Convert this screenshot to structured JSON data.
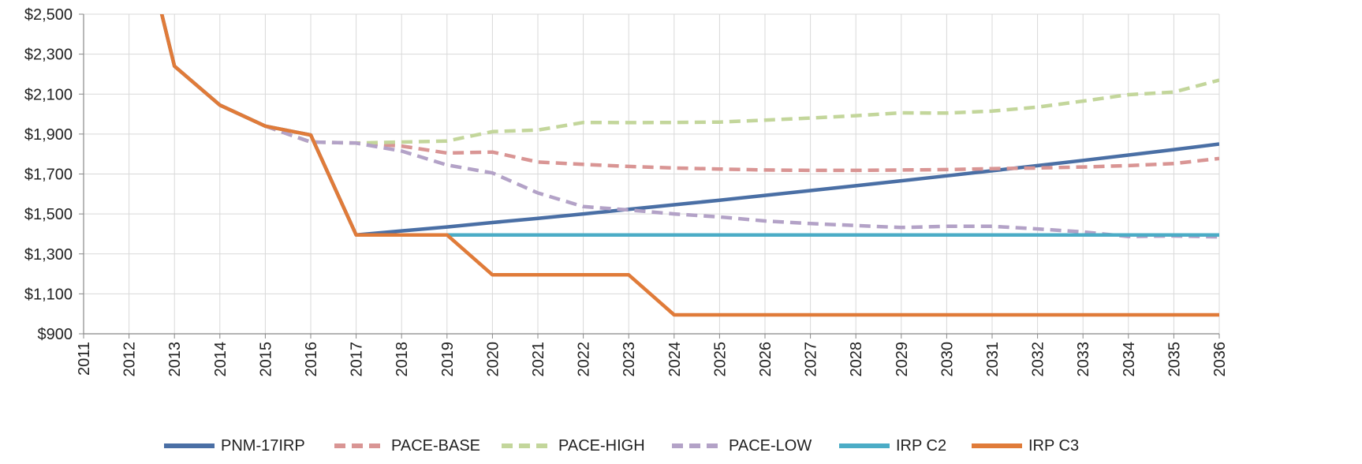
{
  "chart_data": {
    "type": "line",
    "title": "",
    "xlabel": "",
    "ylabel": "",
    "x": [
      2011,
      2012,
      2013,
      2014,
      2015,
      2016,
      2017,
      2018,
      2019,
      2020,
      2021,
      2022,
      2023,
      2024,
      2025,
      2026,
      2027,
      2028,
      2029,
      2030,
      2031,
      2032,
      2033,
      2034,
      2035,
      2036
    ],
    "xlim": [
      2011,
      2036
    ],
    "ylim": [
      900,
      2500
    ],
    "y_ticks": [
      900,
      1100,
      1300,
      1500,
      1700,
      1900,
      2100,
      2300,
      2500
    ],
    "y_tick_labels": [
      "$900",
      "$1,100",
      "$1,300",
      "$1,500",
      "$1,700",
      "$1,900",
      "$2,100",
      "$2,300",
      "$2,500"
    ],
    "x_tick_labels": [
      "2011",
      "2012",
      "2013",
      "2014",
      "2015",
      "2016",
      "2017",
      "2018",
      "2019",
      "2020",
      "2021",
      "2022",
      "2023",
      "2024",
      "2025",
      "2026",
      "2027",
      "2028",
      "2029",
      "2030",
      "2031",
      "2032",
      "2033",
      "2034",
      "2035",
      "2036"
    ],
    "grid": true,
    "legend_position": "bottom",
    "series": [
      {
        "name": "PNM-17IRP",
        "color": "#4a6fa5",
        "dash": "solid",
        "points": [
          [
            2012.7,
            2520
          ],
          [
            2013,
            2240
          ],
          [
            2014,
            2045
          ],
          [
            2015,
            1940
          ],
          [
            2016,
            1895
          ],
          [
            2017,
            1395
          ],
          [
            2018,
            1415
          ],
          [
            2019,
            1435
          ],
          [
            2020,
            1457
          ],
          [
            2021,
            1478
          ],
          [
            2022,
            1500
          ],
          [
            2023,
            1523
          ],
          [
            2024,
            1546
          ],
          [
            2025,
            1569
          ],
          [
            2026,
            1593
          ],
          [
            2027,
            1617
          ],
          [
            2028,
            1641
          ],
          [
            2029,
            1666
          ],
          [
            2030,
            1691
          ],
          [
            2031,
            1716
          ],
          [
            2032,
            1742
          ],
          [
            2033,
            1768
          ],
          [
            2034,
            1795
          ],
          [
            2035,
            1822
          ],
          [
            2036,
            1850
          ]
        ]
      },
      {
        "name": "PACE-BASE",
        "color": "#d99594",
        "dash": "dashed",
        "points": [
          [
            2015,
            1940
          ],
          [
            2016,
            1860
          ],
          [
            2017,
            1855
          ],
          [
            2018,
            1840
          ],
          [
            2019,
            1805
          ],
          [
            2020,
            1810
          ],
          [
            2021,
            1760
          ],
          [
            2022,
            1748
          ],
          [
            2023,
            1738
          ],
          [
            2024,
            1730
          ],
          [
            2025,
            1725
          ],
          [
            2026,
            1720
          ],
          [
            2027,
            1718
          ],
          [
            2028,
            1718
          ],
          [
            2029,
            1720
          ],
          [
            2030,
            1722
          ],
          [
            2031,
            1727
          ],
          [
            2032,
            1730
          ],
          [
            2033,
            1735
          ],
          [
            2034,
            1742
          ],
          [
            2035,
            1752
          ],
          [
            2036,
            1778
          ]
        ]
      },
      {
        "name": "PACE-HIGH",
        "color": "#c3d69b",
        "dash": "dashed",
        "points": [
          [
            2015,
            1940
          ],
          [
            2016,
            1860
          ],
          [
            2017,
            1855
          ],
          [
            2018,
            1860
          ],
          [
            2019,
            1865
          ],
          [
            2020,
            1912
          ],
          [
            2021,
            1920
          ],
          [
            2022,
            1958
          ],
          [
            2023,
            1957
          ],
          [
            2024,
            1958
          ],
          [
            2025,
            1960
          ],
          [
            2026,
            1970
          ],
          [
            2027,
            1980
          ],
          [
            2028,
            1992
          ],
          [
            2029,
            2006
          ],
          [
            2030,
            2005
          ],
          [
            2031,
            2015
          ],
          [
            2032,
            2035
          ],
          [
            2033,
            2065
          ],
          [
            2034,
            2097
          ],
          [
            2035,
            2110
          ],
          [
            2036,
            2170
          ]
        ]
      },
      {
        "name": "PACE-LOW",
        "color": "#b3a2c7",
        "dash": "dashed",
        "points": [
          [
            2015,
            1940
          ],
          [
            2016,
            1860
          ],
          [
            2017,
            1855
          ],
          [
            2018,
            1815
          ],
          [
            2019,
            1745
          ],
          [
            2020,
            1705
          ],
          [
            2021,
            1605
          ],
          [
            2022,
            1537
          ],
          [
            2023,
            1520
          ],
          [
            2024,
            1500
          ],
          [
            2025,
            1485
          ],
          [
            2026,
            1465
          ],
          [
            2027,
            1452
          ],
          [
            2028,
            1442
          ],
          [
            2029,
            1432
          ],
          [
            2030,
            1438
          ],
          [
            2031,
            1438
          ],
          [
            2032,
            1425
          ],
          [
            2033,
            1410
          ],
          [
            2034,
            1387
          ],
          [
            2035,
            1390
          ],
          [
            2036,
            1385
          ]
        ]
      },
      {
        "name": "IRP C2",
        "color": "#4bacc6",
        "dash": "solid",
        "points": [
          [
            2017,
            1395
          ],
          [
            2018,
            1395
          ],
          [
            2019,
            1395
          ],
          [
            2020,
            1395
          ],
          [
            2021,
            1395
          ],
          [
            2022,
            1395
          ],
          [
            2023,
            1395
          ],
          [
            2024,
            1395
          ],
          [
            2025,
            1395
          ],
          [
            2026,
            1395
          ],
          [
            2027,
            1395
          ],
          [
            2028,
            1395
          ],
          [
            2029,
            1395
          ],
          [
            2030,
            1395
          ],
          [
            2031,
            1395
          ],
          [
            2032,
            1395
          ],
          [
            2033,
            1395
          ],
          [
            2034,
            1395
          ],
          [
            2035,
            1395
          ],
          [
            2036,
            1395
          ]
        ]
      },
      {
        "name": "IRP C3",
        "color": "#e07b39",
        "dash": "solid",
        "points": [
          [
            2012.7,
            2520
          ],
          [
            2013,
            2240
          ],
          [
            2014,
            2045
          ],
          [
            2015,
            1940
          ],
          [
            2016,
            1895
          ],
          [
            2017,
            1395
          ],
          [
            2018,
            1395
          ],
          [
            2019,
            1395
          ],
          [
            2020,
            1195
          ],
          [
            2021,
            1195
          ],
          [
            2022,
            1195
          ],
          [
            2023,
            1195
          ],
          [
            2024,
            995
          ],
          [
            2025,
            995
          ],
          [
            2026,
            995
          ],
          [
            2027,
            995
          ],
          [
            2028,
            995
          ],
          [
            2029,
            995
          ],
          [
            2030,
            995
          ],
          [
            2031,
            995
          ],
          [
            2032,
            995
          ],
          [
            2033,
            995
          ],
          [
            2034,
            995
          ],
          [
            2035,
            995
          ],
          [
            2036,
            995
          ]
        ]
      }
    ]
  }
}
